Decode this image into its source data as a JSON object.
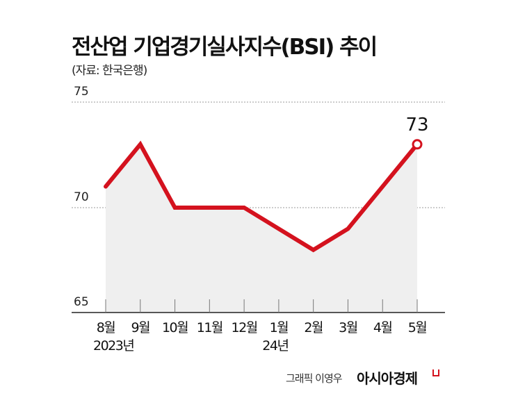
{
  "header": {
    "title": "전산업 기업경기실사지수(BSI) 추이",
    "source": "(자료: 한국은행)"
  },
  "footer": {
    "credit": "그래픽 이영우",
    "brand": "아시아경제"
  },
  "colors": {
    "line": "#d4121e",
    "area": "#efefef",
    "grid": "#999999",
    "axis": "#222222"
  },
  "chart_data": {
    "type": "line",
    "title": "전산업 기업경기실사지수(BSI) 추이",
    "subtitle": "(자료: 한국은행)",
    "xlabel": "",
    "ylabel": "",
    "categories": [
      "8월",
      "9월",
      "10월",
      "11월",
      "12월",
      "1월",
      "2월",
      "3월",
      "4월",
      "5월"
    ],
    "year_labels": [
      {
        "index": 0,
        "label": "2023년"
      },
      {
        "index": 5,
        "label": "24년"
      }
    ],
    "series": [
      {
        "name": "전산업 BSI",
        "values": [
          71,
          73,
          70,
          70,
          70,
          69,
          68,
          69,
          71,
          73
        ]
      }
    ],
    "yticks": [
      65,
      70,
      75
    ],
    "ylim": [
      65,
      75
    ],
    "grid": "dotted horizontal at 70 and 75",
    "annotations": [
      {
        "index": 9,
        "label": "73",
        "marker": "hollow circle"
      }
    ],
    "area_fill": true
  }
}
